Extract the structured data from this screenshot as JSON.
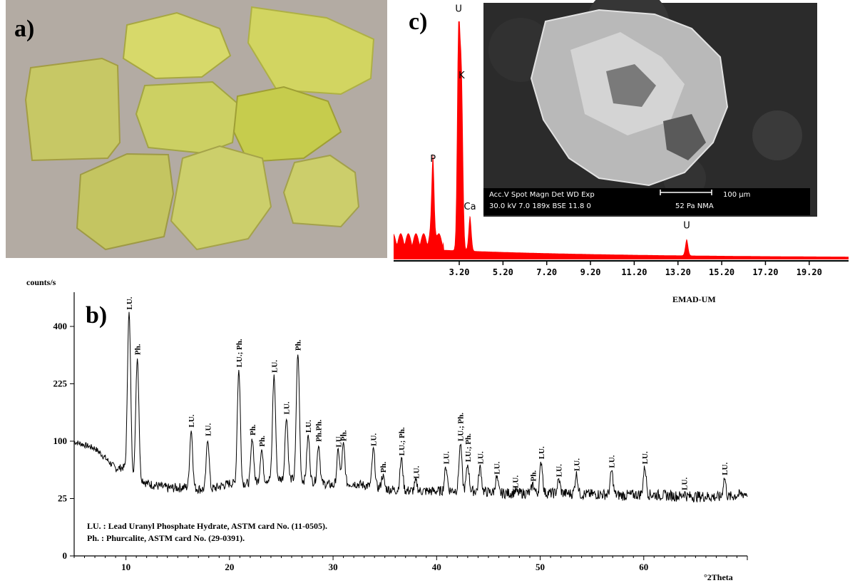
{
  "panel_labels": {
    "a": "a)",
    "b": "b)",
    "c": "c)"
  },
  "photo": {
    "background": "#b5aca5",
    "crystal_color": "#c8c95a",
    "crystal_count": 8
  },
  "colors": {
    "edx_fill": "#ff0000",
    "sem_bg": "#2a2a2a",
    "line": "#000000"
  },
  "sem": {
    "info_row1": "Acc.V  Spot Magn    Det  WD  Exp",
    "info_row2": "30.0 kV 7.0  189x    BSE  11.8  0",
    "info_row2b": "52 Pa  NMA",
    "scale_label": "100 µm"
  },
  "chart_data": [
    {
      "type": "area",
      "name": "EDX spectrum",
      "xlim": [
        0.2,
        21.0
      ],
      "ylim": [
        0,
        1
      ],
      "x_ticks": [
        "3.20",
        "5.20",
        "7.20",
        "9.20",
        "11.20",
        "13.20",
        "15.20",
        "17.20",
        "19.20"
      ],
      "x_tick_values": [
        3.2,
        5.2,
        7.2,
        9.2,
        11.2,
        13.2,
        15.2,
        17.2,
        19.2
      ],
      "peaks": [
        {
          "label": "P",
          "x": 2.0,
          "y": 0.35
        },
        {
          "label": "U",
          "x": 3.17,
          "y": 1.0
        },
        {
          "label": "K",
          "x": 3.31,
          "y": 0.7
        },
        {
          "label": "Ca",
          "x": 3.69,
          "y": 0.15
        },
        {
          "label": "U",
          "x": 13.6,
          "y": 0.07
        }
      ],
      "baseline": 0.03
    },
    {
      "type": "line",
      "name": "XRD pattern",
      "ylabel": "counts/s",
      "xlabel": "°2Theta",
      "header_right": "EMAD-UM",
      "xlim": [
        5,
        70
      ],
      "ylim": [
        0,
        500
      ],
      "x_ticks": [
        10,
        20,
        30,
        40,
        50,
        60
      ],
      "y_ticks": [
        0,
        25,
        100,
        225,
        400
      ],
      "y_scale": "sqrt",
      "background_points": [
        [
          5,
          99
        ],
        [
          7,
          88
        ],
        [
          9,
          58
        ],
        [
          10,
          60
        ],
        [
          12,
          40
        ],
        [
          14,
          35
        ],
        [
          16,
          36
        ],
        [
          18,
          33
        ],
        [
          20,
          40
        ],
        [
          22,
          40
        ],
        [
          24,
          45
        ],
        [
          26,
          45
        ],
        [
          28,
          42
        ],
        [
          30,
          38
        ],
        [
          32,
          40
        ],
        [
          34,
          36
        ],
        [
          36,
          33
        ],
        [
          38,
          32
        ],
        [
          40,
          32
        ],
        [
          42,
          33
        ],
        [
          44,
          32
        ],
        [
          46,
          30
        ],
        [
          48,
          30
        ],
        [
          50,
          30
        ],
        [
          52,
          30
        ],
        [
          54,
          29
        ],
        [
          56,
          29
        ],
        [
          58,
          28
        ],
        [
          60,
          29
        ],
        [
          62,
          28
        ],
        [
          64,
          27
        ],
        [
          66,
          27
        ],
        [
          68,
          26
        ],
        [
          70,
          30
        ]
      ],
      "peaks": [
        {
          "x": 10.3,
          "y": 450,
          "label": "LU."
        },
        {
          "x": 11.1,
          "y": 298,
          "label": "Ph."
        },
        {
          "x": 16.3,
          "y": 120,
          "label": "LU."
        },
        {
          "x": 17.9,
          "y": 104,
          "label": "LU."
        },
        {
          "x": 20.9,
          "y": 262,
          "label": "LU.; Ph."
        },
        {
          "x": 22.2,
          "y": 105,
          "label": "Ph."
        },
        {
          "x": 23.1,
          "y": 86,
          "label": "Ph."
        },
        {
          "x": 24.3,
          "y": 247,
          "label": "LU."
        },
        {
          "x": 25.5,
          "y": 146,
          "label": "LU."
        },
        {
          "x": 26.6,
          "y": 311,
          "label": "Ph."
        },
        {
          "x": 27.6,
          "y": 110,
          "label": "LU."
        },
        {
          "x": 28.6,
          "y": 94,
          "label": "Ph.Ph."
        },
        {
          "x": 30.5,
          "y": 85,
          "label": "LU."
        },
        {
          "x": 31.0,
          "y": 95,
          "label": "Ph."
        },
        {
          "x": 33.9,
          "y": 87,
          "label": "LU."
        },
        {
          "x": 34.8,
          "y": 49,
          "label": "Ph."
        },
        {
          "x": 36.6,
          "y": 72,
          "label": "LU.; Ph."
        },
        {
          "x": 38.0,
          "y": 42,
          "label": "LU."
        },
        {
          "x": 40.9,
          "y": 60,
          "label": "LU."
        },
        {
          "x": 42.3,
          "y": 95,
          "label": "LU.; Ph."
        },
        {
          "x": 43.0,
          "y": 63,
          "label": "LU.; Ph."
        },
        {
          "x": 44.2,
          "y": 60,
          "label": "LU."
        },
        {
          "x": 45.8,
          "y": 47,
          "label": "LU."
        },
        {
          "x": 47.6,
          "y": 32,
          "label": "LU."
        },
        {
          "x": 49.3,
          "y": 39,
          "label": "Ph."
        },
        {
          "x": 50.1,
          "y": 67,
          "label": "LU."
        },
        {
          "x": 51.8,
          "y": 44,
          "label": "LU."
        },
        {
          "x": 53.5,
          "y": 51,
          "label": "LU."
        },
        {
          "x": 56.9,
          "y": 55,
          "label": "LU."
        },
        {
          "x": 60.1,
          "y": 60,
          "label": "LU."
        },
        {
          "x": 63.9,
          "y": 30,
          "label": "LU."
        },
        {
          "x": 67.8,
          "y": 46,
          "label": "LU."
        }
      ],
      "legend": [
        "LU. : Lead Uranyl Phosphate Hydrate, ASTM card No. (11-0505).",
        "Ph. : Phurcalite, ASTM card No. (29-0391)."
      ]
    }
  ]
}
